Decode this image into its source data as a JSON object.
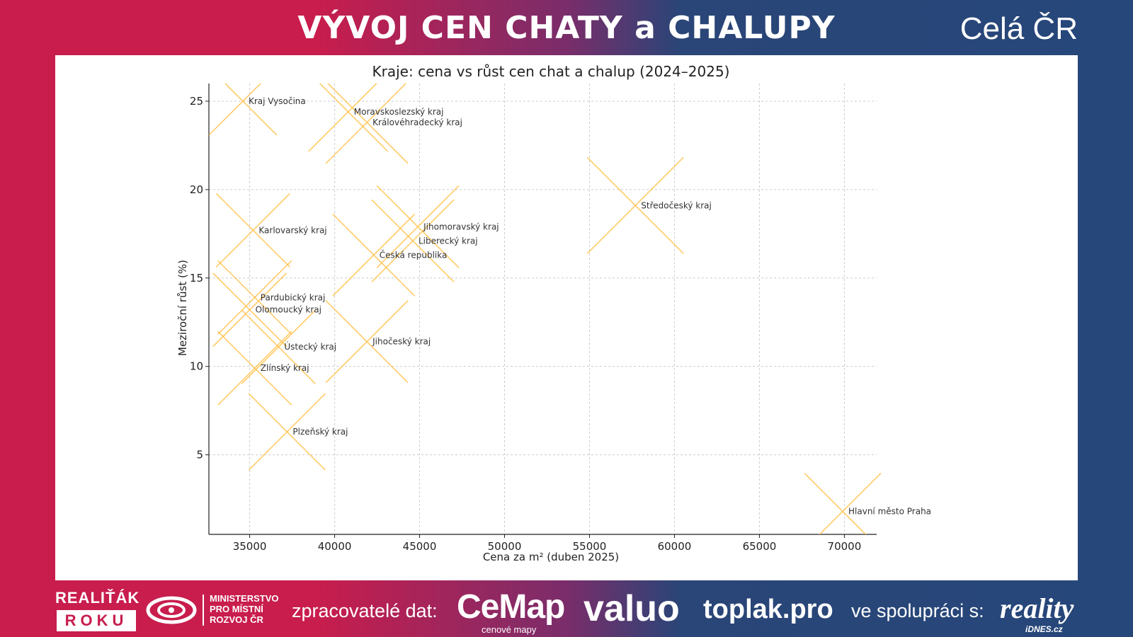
{
  "header": {
    "title": "VÝVOJ CEN CHATY a CHALUPY",
    "region": "Celá ČR"
  },
  "colors": {
    "marker": "#ffc24d",
    "grid": "#cccccc",
    "brand_red": "#c81d4d",
    "brand_blue": "#26477a"
  },
  "chart_data": {
    "type": "scatter",
    "title": "Kraje: cena vs růst cen chat a chalup (2024–2025)",
    "xlabel": "Cena za m² (duben 2025)",
    "ylabel": "Meziroční růst (%)",
    "xlim": [
      32600,
      71900
    ],
    "ylim": [
      0.5,
      26
    ],
    "xticks": [
      35000,
      40000,
      45000,
      50000,
      55000,
      60000,
      65000,
      70000
    ],
    "yticks": [
      5,
      10,
      15,
      20,
      25
    ],
    "grid": true,
    "marker": "x",
    "points": [
      {
        "label": "Kraj Vysočina",
        "x": 34600,
        "y": 25.0,
        "size": 48
      },
      {
        "label": "Moravskoslezský kraj",
        "x": 40800,
        "y": 24.4,
        "size": 56
      },
      {
        "label": "Královéhradecký kraj",
        "x": 41900,
        "y": 23.8,
        "size": 58
      },
      {
        "label": "Středočeský kraj",
        "x": 57700,
        "y": 19.1,
        "size": 68
      },
      {
        "label": "Karlovarský kraj",
        "x": 35200,
        "y": 17.7,
        "size": 52
      },
      {
        "label": "Jihomoravský kraj",
        "x": 44900,
        "y": 17.9,
        "size": 58
      },
      {
        "label": "Liberecký kraj",
        "x": 44600,
        "y": 17.1,
        "size": 58
      },
      {
        "label": "Česká republika",
        "x": 42300,
        "y": 16.3,
        "size": 58
      },
      {
        "label": "Pardubický kraj",
        "x": 35300,
        "y": 13.9,
        "size": 52
      },
      {
        "label": "Olomoucký kraj",
        "x": 35000,
        "y": 13.2,
        "size": 52
      },
      {
        "label": "Ústecký kraj",
        "x": 36700,
        "y": 11.1,
        "size": 52
      },
      {
        "label": "Jihočeský kraj",
        "x": 41900,
        "y": 11.4,
        "size": 58
      },
      {
        "label": "Zlínský kraj",
        "x": 35300,
        "y": 9.9,
        "size": 52
      },
      {
        "label": "Plzeňský kraj",
        "x": 37200,
        "y": 6.3,
        "size": 54
      },
      {
        "label": "Hlavní město Praha",
        "x": 69900,
        "y": 1.8,
        "size": 54
      }
    ]
  },
  "footer": {
    "award_top": "REALIŤÁK",
    "award_box": "ROKU",
    "ministry_lines": [
      "MINISTERSTVO",
      "PRO MÍSTNÍ",
      "ROZVOJ ČR"
    ],
    "processors_label": "zpracovatelé dat:",
    "cemap": "CeMap",
    "cemap_sub": "cenové mapy",
    "valuo": "valuo",
    "toplak": "toplak.pro",
    "cooperation_label": "ve spolupráci s:",
    "reality": "reality",
    "idnes": "iDNES.cz"
  }
}
